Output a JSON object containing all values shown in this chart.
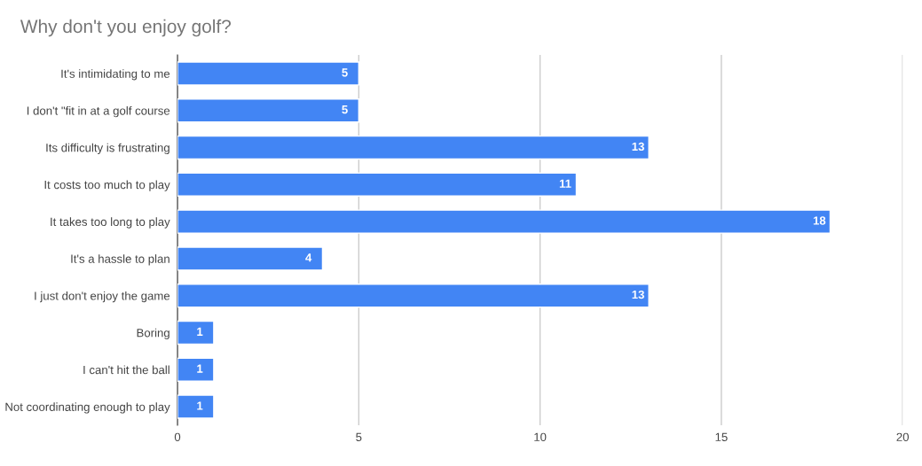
{
  "chart_data": {
    "type": "bar",
    "orientation": "horizontal",
    "title": "Why don't you enjoy golf?",
    "categories": [
      "It's intimidating to me",
      "I don't \"fit in at a golf course",
      "Its difficulty is frustrating",
      "It costs too much to play",
      "It takes too long to play",
      "It's a hassle to plan",
      "I just don't enjoy the game",
      "Boring",
      "I can't hit the ball",
      "Not coordinating enough to play"
    ],
    "values": [
      5,
      5,
      13,
      11,
      18,
      4,
      13,
      1,
      1,
      1
    ],
    "color": "#4285f4",
    "xlim": [
      0,
      20
    ],
    "xticks": [
      0,
      5,
      10,
      15,
      20
    ],
    "grid": "x",
    "data_labels": true,
    "legend": false
  }
}
